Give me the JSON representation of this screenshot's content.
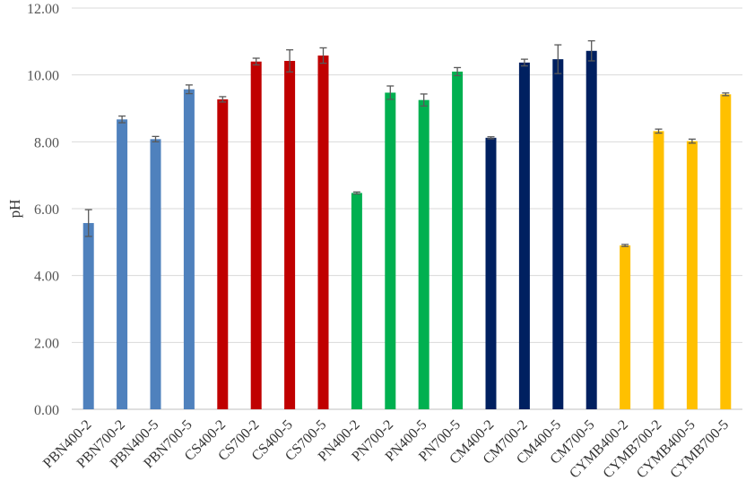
{
  "chart_data": {
    "type": "bar",
    "title": "",
    "xlabel": "",
    "ylabel": "pH",
    "ylim": [
      0,
      12
    ],
    "yticks": [
      "0.00",
      "2.00",
      "4.00",
      "6.00",
      "8.00",
      "10.00",
      "12.00"
    ],
    "grid": true,
    "legend": "none",
    "categories": [
      "PBN400-2",
      "PBN700-2",
      "PBN400-5",
      "PBN700-5",
      "CS400-2",
      "CS700-2",
      "CS400-5",
      "CS700-5",
      "PN400-2",
      "PN700-2",
      "PN400-5",
      "PN700-5",
      "CM400-2",
      "CM700-2",
      "CM400-5",
      "CM700-5",
      "CYMB400-2",
      "CYMB700-2",
      "CYMB400-5",
      "CYMB700-5"
    ],
    "values": [
      5.57,
      8.67,
      8.08,
      9.57,
      9.27,
      10.4,
      10.42,
      10.58,
      6.47,
      9.47,
      9.25,
      10.1,
      8.12,
      10.37,
      10.47,
      10.72,
      4.9,
      8.32,
      8.02,
      9.42
    ],
    "errors": [
      0.4,
      0.1,
      0.08,
      0.13,
      0.08,
      0.1,
      0.33,
      0.23,
      0.03,
      0.2,
      0.18,
      0.12,
      0.03,
      0.1,
      0.43,
      0.3,
      0.03,
      0.06,
      0.06,
      0.04
    ],
    "bar_colors": [
      "#4f81bd",
      "#4f81bd",
      "#4f81bd",
      "#4f81bd",
      "#c00000",
      "#c00000",
      "#c00000",
      "#c00000",
      "#00b050",
      "#00b050",
      "#00b050",
      "#00b050",
      "#002060",
      "#002060",
      "#002060",
      "#002060",
      "#ffc000",
      "#ffc000",
      "#ffc000",
      "#ffc000"
    ]
  }
}
